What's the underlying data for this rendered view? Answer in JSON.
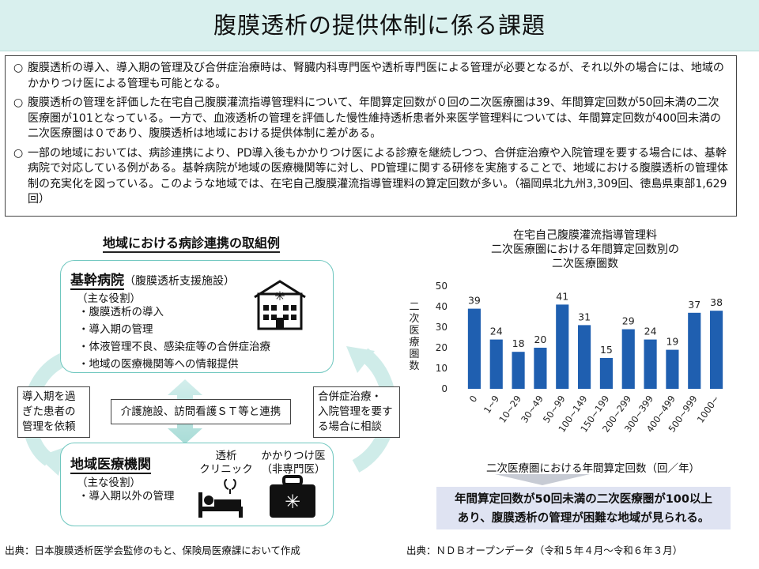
{
  "title": "腹膜透析の提供体制に係る課題",
  "summary": {
    "bullet": "○",
    "items": [
      "腹膜透析の導入、導入期の管理及び合併症治療時は、腎臓内科専門医や透析専門医による管理が必要となるが、それ以外の場合には、地域のかかりつけ医による管理も可能となる。",
      "腹膜透析の管理を評価した在宅自己腹膜灌流指導管理料について、年間算定回数が０回の二次医療圏は39、年間算定回数が50回未満の二次医療圏が101となっている。一方で、血液透析の管理を評価した慢性維持透析患者外来医学管理料については、年間算定回数が400回未満の二次医療圏は０であり、腹膜透析は地域における提供体制に差がある。",
      "一部の地域においては、病診連携により、PD導入後もかかりつけ医による診療を継続しつつ、合併症治療や入院管理を要する場合には、基幹病院で対応している例がある。基幹病院が地域の医療機関等に対し、PD管理に関する研修を実施することで、地域における腹膜透析の管理体制の充実化を図っている。このような地域では、在宅自己腹膜灌流指導管理料の算定回数が多い。（福岡県北九州3,309回、徳島県東部1,629回）"
    ]
  },
  "diagram": {
    "title": "地域における病診連携の取組例",
    "core_hospital": {
      "name": "基幹病院",
      "subtitle": "（腹膜透析支援施設）",
      "role_label": "（主な役割）",
      "roles": [
        "・腹膜透析の導入",
        "・導入期の管理",
        "・体液管理不良、感染症等の合併症治療",
        "・地域の医療機関等への情報提供"
      ]
    },
    "local": {
      "name": "地域医療機関",
      "role_label": "（主な役割）",
      "roles": [
        "・導入期以外の管理"
      ],
      "clinic_label1": "透析",
      "clinic_label2": "クリニック",
      "gp_label1": "かかりつけ医",
      "gp_label2": "（非専門医）"
    },
    "left_arrow_text": [
      "導入期を過",
      "ぎた患者の",
      "管理を依頼"
    ],
    "right_arrow_text": [
      "合併症治療・",
      "入院管理を要す",
      "る場合に相談"
    ],
    "center_text": "介護施設、訪問看護ＳＴ等と連携"
  },
  "credit_left": "出典：日本腹膜透析医学会監修のもと、保険局医療課において作成",
  "credit_right": "出典：ＮＤＢオープンデータ（令和５年４月〜令和６年３月）",
  "conclusion": [
    "年間算定回数が50回未満の二次医療圏が100以上",
    "あり、腹膜透析の管理が困難な地域が見られる。"
  ],
  "colors": {
    "bar": "#1f5fb0",
    "header_bg": "#d9f0ee",
    "box_border": "#6fc7bf",
    "conclusion_bg": "#dfe3f2"
  },
  "chart_data": {
    "type": "bar",
    "title": [
      "在宅自己腹膜灌流指導管理料",
      "二次医療圏における年間算定回数別の",
      "二次医療圏数"
    ],
    "categories": [
      "0",
      "1~9",
      "10~29",
      "30~49",
      "50~99",
      "100~149",
      "150~199",
      "200~299",
      "300~399",
      "400~499",
      "500~999",
      "1000~"
    ],
    "values": [
      39,
      24,
      18,
      20,
      41,
      31,
      15,
      29,
      24,
      19,
      37,
      38
    ],
    "xlabel": "二次医療圏における年間算定回数（回／年）",
    "ylabel": "二次医療圏数",
    "ylim": [
      0,
      50
    ],
    "yticks": [
      0,
      10,
      20,
      30,
      40,
      50
    ],
    "grid": false,
    "legend": "none"
  }
}
